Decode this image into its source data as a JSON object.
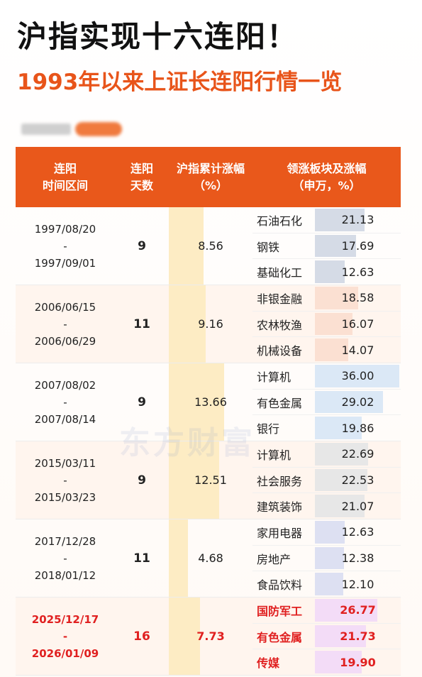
{
  "title": "沪指实现十六连阳！",
  "subtitle": "1993年以来上证长连阳行情一览",
  "watermark": "东方财富",
  "colors": {
    "header_bg": "#e9581b",
    "subtitle": "#e8541a",
    "highlight": "#e02020",
    "gain_bar": "#fdecc4"
  },
  "table": {
    "headers": [
      "连阳\n时间区间",
      "连阳\n天数",
      "沪指累计涨幅\n（%）",
      "领涨板块及涨幅\n（申万，%）"
    ],
    "rows": [
      {
        "start": "1997/08/20",
        "sep": "-",
        "end": "1997/09/01",
        "days": "9",
        "gain": "8.56",
        "gain_num": 8.56,
        "bar_color": "#d5dbe6",
        "sectors": [
          {
            "name": "石油石化",
            "value": "21.13",
            "num": 21.13
          },
          {
            "name": "钢铁",
            "value": "17.69",
            "num": 17.69
          },
          {
            "name": "基础化工",
            "value": "12.63",
            "num": 12.63
          }
        ]
      },
      {
        "start": "2006/06/15",
        "sep": "-",
        "end": "2006/06/29",
        "days": "11",
        "gain": "9.16",
        "gain_num": 9.16,
        "bar_color": "#fbe0d2",
        "sectors": [
          {
            "name": "非银金融",
            "value": "18.58",
            "num": 18.58
          },
          {
            "name": "农林牧渔",
            "value": "16.07",
            "num": 16.07
          },
          {
            "name": "机械设备",
            "value": "14.07",
            "num": 14.07
          }
        ]
      },
      {
        "start": "2007/08/02",
        "sep": "-",
        "end": "2007/08/14",
        "days": "9",
        "gain": "13.66",
        "gain_num": 13.66,
        "bar_color": "#dbe8f6",
        "sectors": [
          {
            "name": "计算机",
            "value": "36.00",
            "num": 36.0
          },
          {
            "name": "有色金属",
            "value": "29.02",
            "num": 29.02
          },
          {
            "name": "银行",
            "value": "19.86",
            "num": 19.86
          }
        ]
      },
      {
        "start": "2015/03/11",
        "sep": "-",
        "end": "2015/03/23",
        "days": "9",
        "gain": "12.51",
        "gain_num": 12.51,
        "bar_color": "#e7e7e7",
        "sectors": [
          {
            "name": "计算机",
            "value": "22.69",
            "num": 22.69
          },
          {
            "name": "社会服务",
            "value": "22.53",
            "num": 22.53
          },
          {
            "name": "建筑装饰",
            "value": "21.07",
            "num": 21.07
          }
        ]
      },
      {
        "start": "2017/12/28",
        "sep": "-",
        "end": "2018/01/12",
        "days": "11",
        "gain": "4.68",
        "gain_num": 4.68,
        "bar_color": "#dde0f2",
        "sectors": [
          {
            "name": "家用电器",
            "value": "12.63",
            "num": 12.63
          },
          {
            "name": "房地产",
            "value": "12.38",
            "num": 12.38
          },
          {
            "name": "食品饮料",
            "value": "12.10",
            "num": 12.1
          }
        ]
      },
      {
        "start": "2025/12/17",
        "sep": "-",
        "end": "2026/01/09",
        "days": "16",
        "gain": "7.73",
        "gain_num": 7.73,
        "bar_color": "#f3dcf7",
        "highlight": true,
        "sectors": [
          {
            "name": "国防军工",
            "value": "26.77",
            "num": 26.77
          },
          {
            "name": "有色金属",
            "value": "21.73",
            "num": 21.73
          },
          {
            "name": "传媒",
            "value": "19.90",
            "num": 19.9
          }
        ]
      }
    ]
  }
}
